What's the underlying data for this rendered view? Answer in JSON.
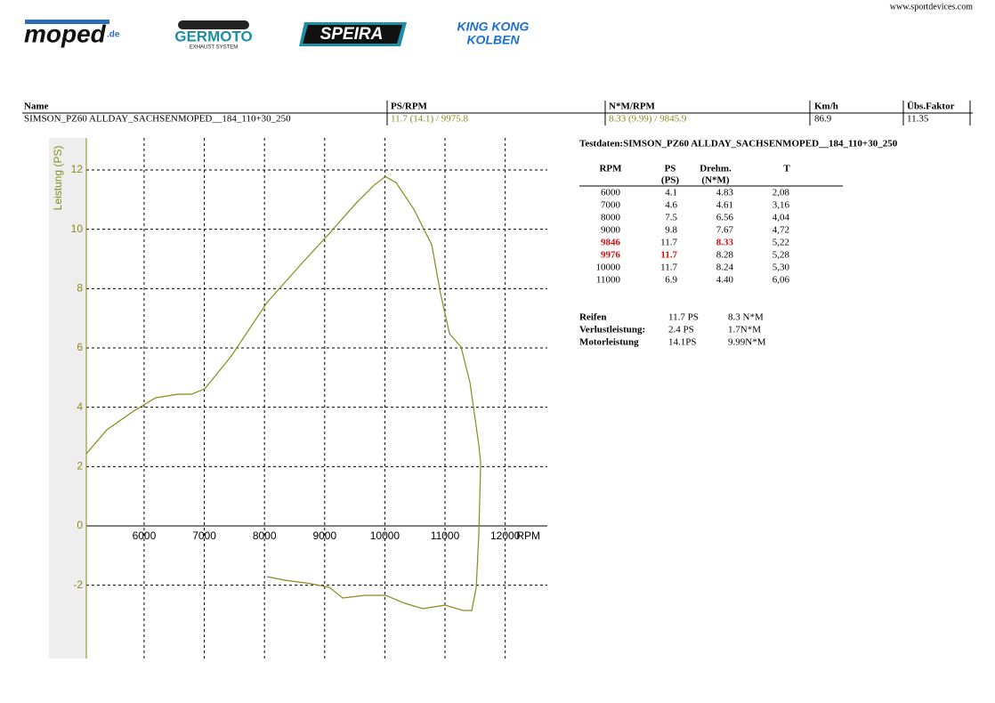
{
  "header": {
    "website": "www.sportdevices.com",
    "logos": [
      "moped",
      ".de",
      "GERMOTO",
      "EXHAUST SYSTEM",
      "SPEIRA",
      "KING KONG",
      "KOLBEN"
    ]
  },
  "summary": {
    "columns": [
      "Name",
      "PS/RPM",
      "N*M/RPM",
      "Km/h",
      "Übs.Faktor"
    ],
    "row": [
      "SIMSON_PZ60 ALLDAY_SACHSENMOPED__184_110+30_250",
      "11.7 (14.1) / 9975.8",
      "8.33 (9.99) / 9845.9",
      "86.9",
      "11.35"
    ]
  },
  "testdata": {
    "title": "Testdaten:SIMSON_PZ60 ALLDAY_SACHSENMOPED__184_110+30_250",
    "columns": [
      [
        "RPM"
      ],
      [
        "PS",
        "(PS)"
      ],
      [
        "Drehm.",
        "(N*M)"
      ],
      [
        "T"
      ]
    ],
    "rows": [
      [
        "6000",
        "4.1",
        "4.83",
        "2,08"
      ],
      [
        "7000",
        "4.6",
        "4.61",
        "3,16"
      ],
      [
        "8000",
        "7.5",
        "6.56",
        "4,04"
      ],
      [
        "9000",
        "9.8",
        "7.67",
        "4,72"
      ],
      [
        "9846",
        "11.7",
        "8.33",
        "5,22"
      ],
      [
        "9976",
        "11.7",
        "8.28",
        "5,28"
      ],
      [
        "10000",
        "11.7",
        "8.24",
        "5,30"
      ],
      [
        "11000",
        "6.9",
        "4.40",
        "6,06"
      ]
    ]
  },
  "losses": {
    "rows": [
      [
        "Reifen",
        "11.7 PS",
        "8.3 N*M"
      ],
      [
        "Verlustleistung:",
        "2.4 PS",
        "1.7N*M"
      ],
      [
        "Motorleistung",
        "14.1PS",
        "9.99N*M"
      ]
    ]
  },
  "chart_data": {
    "type": "line",
    "ylabel": "Leistung (PS)",
    "xlabel": "RPM",
    "color": "#8a8a1c",
    "x": [
      5040,
      5380,
      5824,
      6194,
      6563,
      6785,
      7007,
      7451,
      8042,
      8634,
      9078,
      9522,
      9818,
      10010,
      10187,
      10483,
      10779,
      10926,
      11075,
      11267,
      11415,
      11562,
      11592,
      11562,
      11518,
      11444,
      11296,
      11000,
      10631,
      10335,
      10010,
      9670,
      9300,
      9078,
      8782,
      8338,
      8042
    ],
    "values": [
      2.43,
      3.24,
      3.87,
      4.32,
      4.44,
      4.44,
      4.62,
      5.73,
      7.53,
      8.88,
      9.86,
      10.88,
      11.48,
      11.78,
      11.57,
      10.67,
      9.48,
      7.83,
      6.48,
      6.03,
      4.83,
      2.73,
      2.13,
      -0.27,
      -2.07,
      -2.85,
      -2.85,
      -2.67,
      -2.79,
      -2.61,
      -2.34,
      -2.34,
      -2.43,
      -2.07,
      -1.95,
      -1.83,
      -1.71
    ],
    "xlim": [
      5040,
      12700
    ],
    "ylim": [
      -4.47,
      13.08
    ],
    "xticks": [
      6000,
      7000,
      8000,
      9000,
      10000,
      11000,
      12000
    ],
    "yticks": [
      -2,
      0,
      2,
      4,
      6,
      8,
      10,
      12
    ],
    "grid": true
  }
}
